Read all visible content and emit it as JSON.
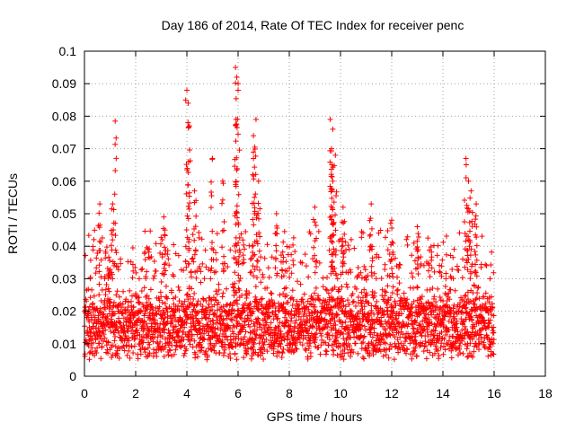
{
  "chart_data": {
    "type": "scatter",
    "title": "Day 186 of 2014, Rate Of TEC Index for receiver penc",
    "xlabel": "GPS time / hours",
    "ylabel": "ROTI / TECUs",
    "xlim": [
      0,
      18
    ],
    "ylim": [
      0,
      0.1
    ],
    "xticks": [
      "0",
      "2",
      "4",
      "6",
      "8",
      "10",
      "12",
      "14",
      "16",
      "18"
    ],
    "yticks": [
      "0",
      "0.01",
      "0.02",
      "0.03",
      "0.04",
      "0.05",
      "0.06",
      "0.07",
      "0.08",
      "0.09",
      "0.1"
    ],
    "grid": true,
    "marker": "+",
    "marker_color": "#ff0000",
    "series": [
      {
        "name": "ROTI",
        "x_range": [
          0,
          16
        ],
        "baseline_band": [
          0.005,
          0.03
        ],
        "peaks": [
          {
            "x": 1.2,
            "y": 0.0785
          },
          {
            "x": 0.6,
            "y": 0.053
          },
          {
            "x": 1.1,
            "y": 0.053
          },
          {
            "x": 3.1,
            "y": 0.049
          },
          {
            "x": 4.0,
            "y": 0.088
          },
          {
            "x": 4.05,
            "y": 0.084
          },
          {
            "x": 4.1,
            "y": 0.077
          },
          {
            "x": 4.3,
            "y": 0.057
          },
          {
            "x": 5.0,
            "y": 0.067
          },
          {
            "x": 5.4,
            "y": 0.06
          },
          {
            "x": 5.9,
            "y": 0.095
          },
          {
            "x": 5.95,
            "y": 0.092
          },
          {
            "x": 6.0,
            "y": 0.088
          },
          {
            "x": 5.92,
            "y": 0.079
          },
          {
            "x": 6.7,
            "y": 0.079
          },
          {
            "x": 6.6,
            "y": 0.074
          },
          {
            "x": 6.6,
            "y": 0.067
          },
          {
            "x": 6.8,
            "y": 0.06
          },
          {
            "x": 7.5,
            "y": 0.05
          },
          {
            "x": 9.0,
            "y": 0.052
          },
          {
            "x": 9.6,
            "y": 0.079
          },
          {
            "x": 9.7,
            "y": 0.076
          },
          {
            "x": 9.65,
            "y": 0.07
          },
          {
            "x": 9.8,
            "y": 0.068
          },
          {
            "x": 9.7,
            "y": 0.06
          },
          {
            "x": 10.1,
            "y": 0.052
          },
          {
            "x": 11.2,
            "y": 0.053
          },
          {
            "x": 12.0,
            "y": 0.048
          },
          {
            "x": 13.0,
            "y": 0.046
          },
          {
            "x": 14.9,
            "y": 0.067
          },
          {
            "x": 15.0,
            "y": 0.06
          },
          {
            "x": 15.1,
            "y": 0.057
          },
          {
            "x": 15.3,
            "y": 0.053
          }
        ]
      }
    ]
  }
}
